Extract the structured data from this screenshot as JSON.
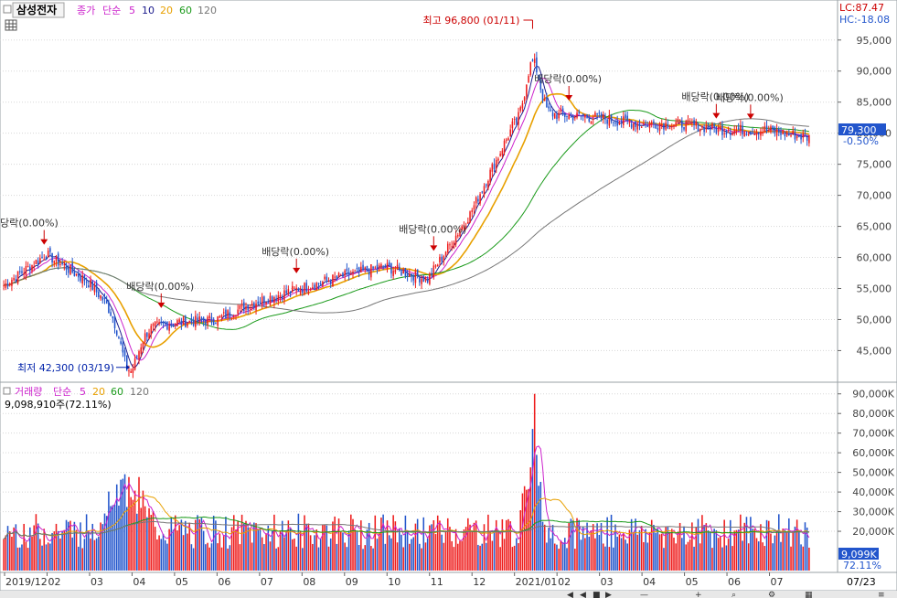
{
  "chart_data": [
    {
      "type": "candlestick",
      "title": "삼성전자",
      "legend": {
        "prefix": "종가",
        "method": "단순",
        "periods": [
          "5",
          "10",
          "20",
          "60",
          "120"
        ]
      },
      "ylim": [
        40500,
        98500
      ],
      "y_ticks": [
        "45,000",
        "50,000",
        "55,000",
        "60,000",
        "65,000",
        "70,000",
        "75,000",
        "80,000",
        "85,000",
        "90,000",
        "95,000"
      ],
      "y_tick_values": [
        45000,
        50000,
        55000,
        60000,
        65000,
        70000,
        75000,
        80000,
        85000,
        90000,
        95000
      ],
      "last_price_label": "79,300",
      "last_price": 79300,
      "change_label": "-0.50%",
      "lc_label": "LC:87.47",
      "hc_label": "HC:-18.08",
      "high_annotation": "최고 96,800 (01/11)",
      "low_annotation": "최저 42,300 (03/19)",
      "dividend_label": "배당락(0.00%)",
      "dividend_label_partial": "당락(0.00%)",
      "monthly_anchors": [
        {
          "m": "2019/12",
          "close": 55500
        },
        {
          "m": "2020/01",
          "close": 60500
        },
        {
          "m": "2020/02",
          "close": 56000
        },
        {
          "m": "2020/03",
          "close": 48000
        },
        {
          "m": "2020/04",
          "close": 49500
        },
        {
          "m": "2020/05",
          "close": 50000
        },
        {
          "m": "2020/06",
          "close": 53000
        },
        {
          "m": "2020/07",
          "close": 55000
        },
        {
          "m": "2020/08",
          "close": 57000
        },
        {
          "m": "2020/09",
          "close": 58500
        },
        {
          "m": "2020/10",
          "close": 56500
        },
        {
          "m": "2020/11",
          "close": 67000
        },
        {
          "m": "2020/12",
          "close": 81000
        },
        {
          "m": "2021/01",
          "close": 83000
        },
        {
          "m": "2021/02",
          "close": 82500
        },
        {
          "m": "2021/03",
          "close": 81500
        },
        {
          "m": "2021/04",
          "close": 81500
        },
        {
          "m": "2021/05",
          "close": 80500
        },
        {
          "m": "2021/06",
          "close": 80500
        },
        {
          "m": "2021/07",
          "close": 79300
        }
      ]
    },
    {
      "type": "bar",
      "title": "거래량",
      "legend": {
        "method": "단순",
        "periods": [
          "5",
          "20",
          "60",
          "120"
        ]
      },
      "value_label": "9,098,910주(72.11%)",
      "ylim": [
        0,
        95000
      ],
      "y_ticks": [
        "20,000K",
        "30,000K",
        "40,000K",
        "50,000K",
        "60,000K",
        "70,000K",
        "80,000K",
        "90,000K"
      ],
      "y_tick_values": [
        20000,
        30000,
        40000,
        50000,
        60000,
        70000,
        80000,
        90000
      ],
      "last_volume_label": "9,099K",
      "last_volume": 9099,
      "last_ratio_label": "72.11%",
      "peak_volume": 90000,
      "typical_volume": 20000
    }
  ],
  "x_axis": {
    "tick_labels": [
      "2019/12",
      "02",
      "03",
      "04",
      "05",
      "06",
      "07",
      "08",
      "09",
      "10",
      "11",
      "12",
      "2021/01",
      "02",
      "03",
      "04",
      "05",
      "06",
      "07"
    ],
    "end_label": "07/23"
  },
  "colors": {
    "up": "#ee1c1c",
    "down": "#2255cc",
    "ma5": "#1a1a8c",
    "ma10": "#cc22cc",
    "ma20": "#e8a000",
    "ma60": "#1a9a1a",
    "ma120": "#777777",
    "marker": "#cc0000",
    "low_marker": "#0022aa",
    "grid": "#d8d8d8",
    "panel_border": "#9aa0a6"
  }
}
